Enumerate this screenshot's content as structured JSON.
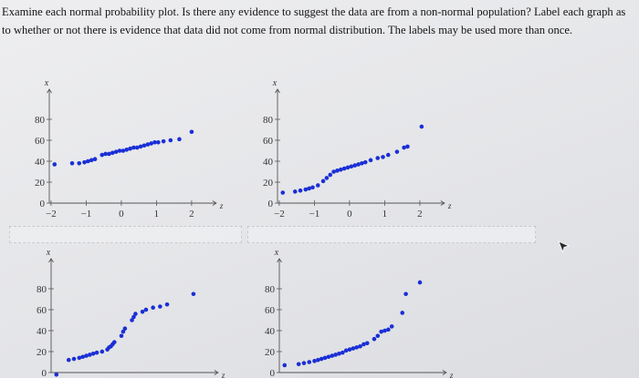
{
  "question": "Examine each normal probability plot. Is there any evidence to suggest the data are from a non-normal population? Label each graph as to whether or not there is evidence that data did not come from normal distribution. The labels may be used more than once.",
  "plots": [
    {
      "id": "plot-1",
      "y_axis_label": "x",
      "x_axis_label": "z",
      "y_ticks": [
        "80",
        "60",
        "40",
        "20",
        "0"
      ],
      "x_ticks": [
        "-2",
        "-1",
        "0",
        "1",
        "2"
      ],
      "points": [
        [
          -1.9,
          37
        ],
        [
          -1.4,
          38
        ],
        [
          -1.2,
          38
        ],
        [
          -1.05,
          39
        ],
        [
          -0.95,
          40
        ],
        [
          -0.85,
          41
        ],
        [
          -0.75,
          42
        ],
        [
          -0.55,
          46
        ],
        [
          -0.45,
          47
        ],
        [
          -0.35,
          47
        ],
        [
          -0.25,
          48
        ],
        [
          -0.15,
          49
        ],
        [
          -0.05,
          50
        ],
        [
          0.05,
          50
        ],
        [
          0.15,
          51
        ],
        [
          0.25,
          52
        ],
        [
          0.35,
          53
        ],
        [
          0.45,
          53
        ],
        [
          0.55,
          54
        ],
        [
          0.65,
          55
        ],
        [
          0.75,
          56
        ],
        [
          0.85,
          57
        ],
        [
          0.95,
          58
        ],
        [
          1.05,
          58
        ],
        [
          1.2,
          59
        ],
        [
          1.4,
          60
        ],
        [
          1.65,
          61
        ],
        [
          2.0,
          68
        ]
      ]
    },
    {
      "id": "plot-2",
      "y_axis_label": "x",
      "x_axis_label": "z",
      "y_ticks": [
        "80",
        "60",
        "40",
        "20",
        "0"
      ],
      "x_ticks": [
        "-2",
        "-1",
        "0",
        "1",
        "2"
      ],
      "points": [
        [
          -1.9,
          10
        ],
        [
          -1.55,
          11
        ],
        [
          -1.4,
          12
        ],
        [
          -1.25,
          13
        ],
        [
          -1.15,
          14
        ],
        [
          -1.05,
          15
        ],
        [
          -0.9,
          17
        ],
        [
          -0.75,
          21
        ],
        [
          -0.65,
          24
        ],
        [
          -0.55,
          27
        ],
        [
          -0.45,
          30
        ],
        [
          -0.35,
          31
        ],
        [
          -0.25,
          32
        ],
        [
          -0.15,
          33
        ],
        [
          -0.05,
          34
        ],
        [
          0.05,
          35
        ],
        [
          0.15,
          36
        ],
        [
          0.25,
          37
        ],
        [
          0.35,
          38
        ],
        [
          0.45,
          39
        ],
        [
          0.6,
          41
        ],
        [
          0.8,
          43
        ],
        [
          0.95,
          44
        ],
        [
          1.1,
          46
        ],
        [
          1.35,
          49
        ],
        [
          1.55,
          53
        ],
        [
          1.65,
          54
        ],
        [
          2.05,
          73
        ]
      ]
    },
    {
      "id": "plot-3",
      "y_axis_label": "x",
      "x_axis_label": "z",
      "y_ticks": [
        "80",
        "60",
        "40",
        "20",
        "0"
      ],
      "x_ticks": [],
      "points": [
        [
          -1.9,
          -2
        ],
        [
          -1.55,
          12
        ],
        [
          -1.4,
          13
        ],
        [
          -1.25,
          14
        ],
        [
          -1.15,
          15
        ],
        [
          -1.05,
          16
        ],
        [
          -0.95,
          17
        ],
        [
          -0.85,
          18
        ],
        [
          -0.75,
          19
        ],
        [
          -0.6,
          20
        ],
        [
          -0.45,
          22
        ],
        [
          -0.4,
          24
        ],
        [
          -0.35,
          25
        ],
        [
          -0.3,
          27
        ],
        [
          -0.25,
          29
        ],
        [
          -0.05,
          35
        ],
        [
          0.0,
          39
        ],
        [
          0.05,
          42
        ],
        [
          0.25,
          50
        ],
        [
          0.3,
          53
        ],
        [
          0.35,
          56
        ],
        [
          0.55,
          58
        ],
        [
          0.65,
          60
        ],
        [
          0.85,
          62
        ],
        [
          1.05,
          63
        ],
        [
          1.25,
          65
        ],
        [
          2.0,
          75
        ]
      ]
    },
    {
      "id": "plot-4",
      "y_axis_label": "x",
      "x_axis_label": "z",
      "y_ticks": [
        "80",
        "60",
        "40",
        "20",
        "0"
      ],
      "x_ticks": [],
      "points": [
        [
          -1.9,
          7
        ],
        [
          -1.5,
          8
        ],
        [
          -1.35,
          9
        ],
        [
          -1.2,
          10
        ],
        [
          -1.05,
          11
        ],
        [
          -0.95,
          12
        ],
        [
          -0.85,
          13
        ],
        [
          -0.75,
          14
        ],
        [
          -0.65,
          15
        ],
        [
          -0.55,
          16
        ],
        [
          -0.45,
          17
        ],
        [
          -0.35,
          18
        ],
        [
          -0.25,
          19
        ],
        [
          -0.15,
          21
        ],
        [
          -0.05,
          22
        ],
        [
          0.05,
          23
        ],
        [
          0.15,
          24
        ],
        [
          0.25,
          25
        ],
        [
          0.35,
          27
        ],
        [
          0.45,
          28
        ],
        [
          0.65,
          32
        ],
        [
          0.75,
          35
        ],
        [
          0.85,
          39
        ],
        [
          0.95,
          40
        ],
        [
          1.05,
          41
        ],
        [
          1.15,
          44
        ],
        [
          1.45,
          57
        ],
        [
          1.55,
          75
        ],
        [
          1.95,
          86
        ]
      ]
    }
  ]
}
